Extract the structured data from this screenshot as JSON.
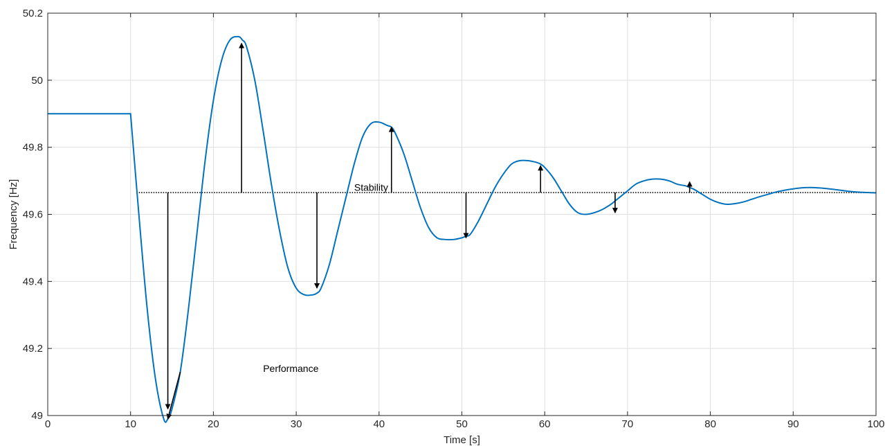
{
  "chart_data": {
    "type": "line",
    "title": "",
    "xlabel": "Time [s]",
    "ylabel": "Frequency [Hz]",
    "xlim": [
      0,
      100
    ],
    "ylim": [
      49,
      50.2
    ],
    "x_ticks": [
      0,
      10,
      20,
      30,
      40,
      50,
      60,
      70,
      80,
      90,
      100
    ],
    "y_ticks": [
      49,
      49.2,
      49.4,
      49.6,
      49.8,
      50,
      50.2
    ],
    "x_tick_labels": [
      "0",
      "10",
      "20",
      "30",
      "40",
      "50",
      "60",
      "70",
      "80",
      "90",
      "100"
    ],
    "y_tick_labels": [
      "49",
      "49.2",
      "49.4",
      "49.6",
      "49.8",
      "50",
      "50.2"
    ],
    "grid": true,
    "series": [
      {
        "color": "#0072BD",
        "x": [
          0,
          10,
          11,
          12,
          13,
          14,
          14.5,
          15,
          16,
          17,
          18,
          19,
          20,
          21,
          22,
          23,
          23.5,
          24,
          25,
          26,
          27,
          28,
          29,
          30,
          31,
          32,
          32.5,
          33,
          34,
          35,
          36,
          37,
          38,
          39,
          40,
          41,
          41.5,
          42,
          43,
          44,
          45,
          46,
          47,
          48,
          49,
          50,
          50.5,
          51,
          52,
          53,
          54,
          55,
          56,
          57,
          58,
          59,
          59.5,
          60,
          61,
          62,
          63,
          64,
          65,
          66,
          67,
          68,
          68.5,
          69,
          70,
          71,
          72,
          73,
          74,
          75,
          76,
          77,
          77.5,
          78,
          79,
          80,
          81,
          82,
          83,
          84,
          85,
          86,
          87,
          88,
          89,
          90,
          91,
          92,
          93,
          94,
          95,
          96,
          97,
          98,
          99,
          100
        ],
        "y": [
          49.9,
          49.9,
          49.6,
          49.32,
          49.11,
          48.99,
          48.99,
          49.02,
          49.13,
          49.32,
          49.54,
          49.76,
          49.94,
          50.06,
          50.12,
          50.13,
          50.12,
          50.1,
          50.0,
          49.85,
          49.69,
          49.55,
          49.44,
          49.38,
          49.36,
          49.36,
          49.365,
          49.38,
          49.45,
          49.55,
          49.65,
          49.75,
          49.83,
          49.87,
          49.875,
          49.865,
          49.86,
          49.84,
          49.78,
          49.7,
          49.62,
          49.56,
          49.53,
          49.525,
          49.525,
          49.53,
          49.535,
          49.54,
          49.58,
          49.63,
          49.68,
          49.72,
          49.75,
          49.76,
          49.76,
          49.755,
          49.75,
          49.74,
          49.71,
          49.67,
          49.63,
          49.605,
          49.6,
          49.605,
          49.615,
          49.63,
          49.64,
          49.65,
          49.67,
          49.69,
          49.7,
          49.705,
          49.705,
          49.7,
          49.69,
          49.685,
          49.68,
          49.675,
          49.66,
          49.645,
          49.635,
          49.63,
          49.632,
          49.637,
          49.645,
          49.653,
          49.66,
          49.667,
          49.672,
          49.676,
          49.679,
          49.68,
          49.679,
          49.677,
          49.674,
          49.671,
          49.668,
          49.666,
          49.665,
          49.664
        ]
      }
    ],
    "reference_lines": [
      {
        "style": "dotted",
        "color": "#000000",
        "x": [
          11,
          100
        ],
        "y": 49.665
      }
    ],
    "annotations": [
      {
        "type": "text",
        "text": "Stability",
        "x": 37,
        "y": 49.67
      },
      {
        "type": "text",
        "text": "Performance",
        "x": 26,
        "y": 49.13
      },
      {
        "type": "arrow",
        "from": [
          16,
          49.13
        ],
        "to": [
          14.5,
          48.99
        ]
      },
      {
        "type": "arrow",
        "from": [
          14.5,
          49.665
        ],
        "to": [
          14.5,
          49.02
        ]
      },
      {
        "type": "arrow",
        "from": [
          23.4,
          49.665
        ],
        "to": [
          23.4,
          50.11
        ]
      },
      {
        "type": "arrow",
        "from": [
          32.5,
          49.665
        ],
        "to": [
          32.5,
          49.38
        ]
      },
      {
        "type": "arrow",
        "from": [
          41.5,
          49.665
        ],
        "to": [
          41.5,
          49.86
        ]
      },
      {
        "type": "arrow",
        "from": [
          50.5,
          49.665
        ],
        "to": [
          50.5,
          49.53
        ]
      },
      {
        "type": "arrow",
        "from": [
          59.5,
          49.665
        ],
        "to": [
          59.5,
          49.745
        ]
      },
      {
        "type": "arrow",
        "from": [
          68.5,
          49.665
        ],
        "to": [
          68.5,
          49.605
        ]
      },
      {
        "type": "arrow",
        "from": [
          77.5,
          49.665
        ],
        "to": [
          77.5,
          49.697
        ]
      }
    ]
  }
}
